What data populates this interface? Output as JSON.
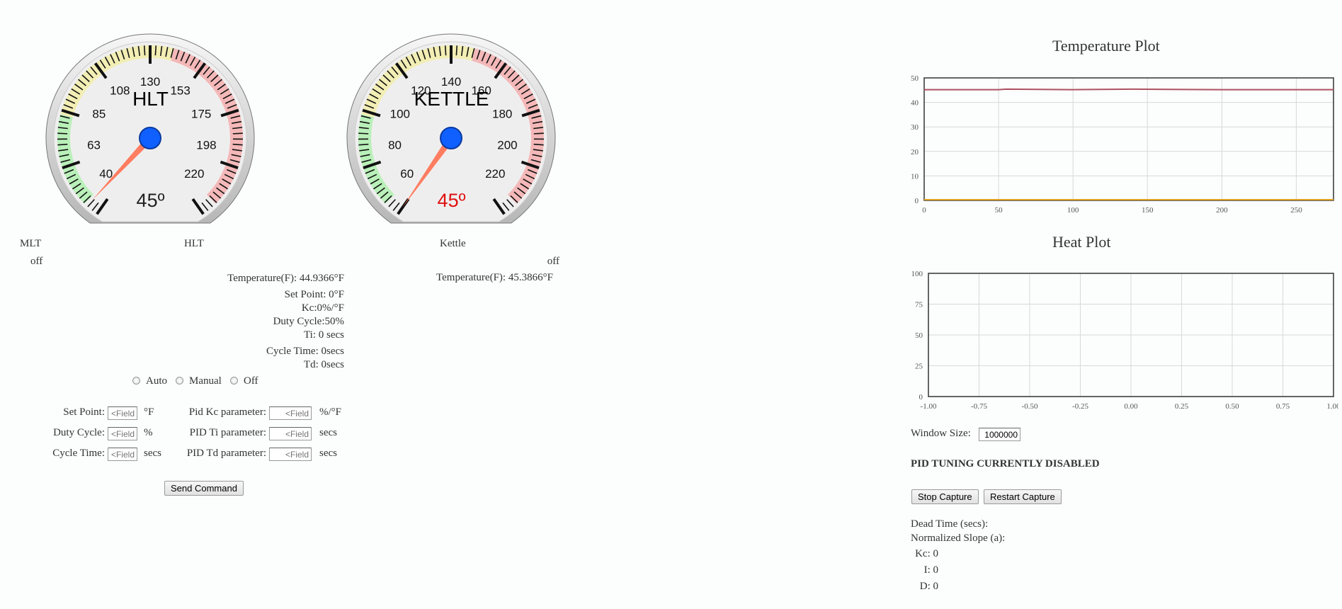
{
  "gauges": [
    {
      "title": "HLT",
      "value_text": "45º",
      "ticks": [
        "40",
        "63",
        "85",
        "108",
        "130",
        "153",
        "175",
        "198",
        "220"
      ],
      "min": 40,
      "max": 220,
      "value": 45,
      "value_color": "#222222"
    },
    {
      "title": "KETTLE",
      "value_text": "45º",
      "ticks": [
        "60",
        "80",
        "100",
        "120",
        "140",
        "160",
        "180",
        "200",
        "220"
      ],
      "min": 60,
      "max": 220,
      "value": 45,
      "value_color": "#e01010"
    }
  ],
  "vessels": {
    "mlt": {
      "label": "MLT",
      "status": "off"
    },
    "hlt": {
      "label": "HLT",
      "temperature": "Temperature(F): 44.9366°F",
      "set_point": "Set Point: 0°F",
      "kc": "Kc:0%/°F",
      "duty_cycle": "Duty Cycle:50%",
      "ti": "Ti: 0 secs",
      "cycle_time": "Cycle Time: 0secs",
      "td": "Td: 0secs"
    },
    "kettle": {
      "label": "Kettle",
      "status": "off",
      "temperature": "Temperature(F): 45.3866°F"
    }
  },
  "mode": {
    "options": [
      "Auto",
      "Manual",
      "Off"
    ]
  },
  "form": {
    "set_point": {
      "label": "Set Point:",
      "placeholder": "<Field",
      "unit": "°F"
    },
    "duty_cycle": {
      "label": "Duty Cycle:",
      "placeholder": "<Field",
      "unit": "%"
    },
    "cycle_time": {
      "label": "Cycle Time:",
      "placeholder": "<Field",
      "unit": "secs"
    },
    "pid_kc": {
      "label": "Pid Kc parameter:",
      "placeholder": "<Field",
      "unit": "%/°F"
    },
    "pid_ti": {
      "label": "PID Ti parameter:",
      "placeholder": "<Field",
      "unit": "secs"
    },
    "pid_td": {
      "label": "PID Td parameter:",
      "placeholder": "<Field",
      "unit": "secs"
    },
    "send_label": "Send Command"
  },
  "temperature_plot": {
    "title": "Temperature Plot",
    "chart_data": {
      "type": "line",
      "x_ticks": [
        "0",
        "50",
        "100",
        "150",
        "200",
        "250"
      ],
      "y_ticks": [
        "0",
        "10",
        "20",
        "30",
        "40",
        "50"
      ],
      "xlim": [
        0,
        275
      ],
      "ylim": [
        0,
        50
      ],
      "series": [
        {
          "color": "#b05060",
          "x": [
            0,
            50,
            55,
            100,
            140,
            200,
            275
          ],
          "y": [
            45.2,
            45.2,
            45.4,
            45.2,
            45.4,
            45.2,
            45.2
          ]
        },
        {
          "color": "#e0a020",
          "x": [
            0,
            275
          ],
          "y": [
            0.3,
            0.3
          ]
        }
      ]
    }
  },
  "heat_plot": {
    "title": "Heat Plot",
    "chart_data": {
      "type": "line",
      "x_ticks": [
        "-1.00",
        "-0.75",
        "-0.50",
        "-0.25",
        "0.00",
        "0.25",
        "0.50",
        "0.75",
        "1.00"
      ],
      "y_ticks": [
        "0",
        "25",
        "50",
        "75",
        "100"
      ],
      "xlim": [
        -1,
        1
      ],
      "ylim": [
        0,
        100
      ],
      "series": []
    }
  },
  "tuning": {
    "window_label": "Window Size:",
    "window_value": "1000000",
    "status": "PID TUNING CURRENTLY DISABLED",
    "stop_label": "Stop Capture",
    "restart_label": "Restart Capture",
    "dead_time": "Dead Time (secs):",
    "normalized_slope": "Normalized Slope (a):",
    "kc": "Kc: 0",
    "i": "I: 0",
    "d": "D: 0"
  },
  "colors": {
    "needle": "#ff7050",
    "hub": "#1060ff",
    "green_zone": "#b9f0b9",
    "yellow_zone": "#f2eeb4",
    "red_zone": "#f4b8b8"
  }
}
